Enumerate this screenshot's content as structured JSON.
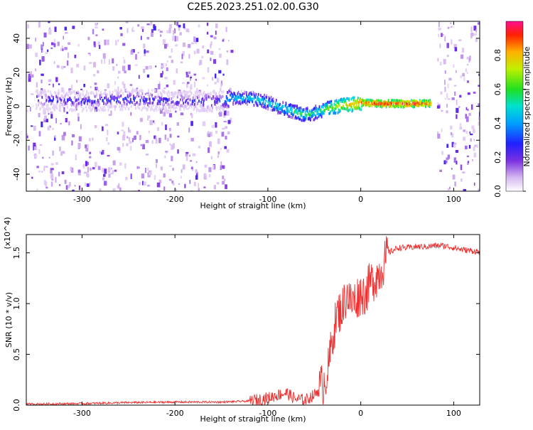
{
  "title": "C2E5.2023.251.02.00.G30",
  "chart_data": [
    {
      "type": "heatmap",
      "xlabel": "Height of straight line (km)",
      "ylabel": "Frequency (Hz)",
      "xlim": [
        -360,
        128
      ],
      "ylim": [
        -50,
        50
      ],
      "xticks": [
        -300,
        -200,
        -100,
        0,
        100
      ],
      "yticks": [
        -40,
        -20,
        0,
        20,
        40
      ],
      "colorbar": {
        "label": "Normalized spectral amplitude",
        "range": [
          0.0,
          1.0
        ],
        "ticks": [
          "0.0",
          "0.2",
          "0.4",
          "0.6",
          "0.8"
        ],
        "colormap": [
          "#ffffff",
          "#e8d0f5",
          "#9b59d8",
          "#5010e0",
          "#1040ff",
          "#00c8ff",
          "#00e0a0",
          "#40e020",
          "#e0e000",
          "#ff8000",
          "#ff0000",
          "#ff1090"
        ]
      },
      "ridge": {
        "x": [
          -350,
          -300,
          -250,
          -200,
          -150,
          -140,
          -120,
          -100,
          -80,
          -60,
          -50,
          -40,
          -30,
          -20,
          -10,
          0,
          20,
          40,
          60,
          75
        ],
        "frequency": [
          4,
          3,
          4,
          3,
          3,
          5,
          5,
          2,
          -2,
          -5,
          -4,
          -2,
          -0.5,
          0.5,
          1,
          2,
          1.5,
          1.5,
          1.5,
          1.5
        ],
        "amplitude": [
          0.25,
          0.25,
          0.3,
          0.25,
          0.3,
          0.45,
          0.5,
          0.5,
          0.55,
          0.6,
          0.55,
          0.65,
          0.7,
          0.8,
          0.85,
          0.9,
          0.95,
          0.95,
          0.95,
          0.9
        ]
      },
      "noise_regions": [
        [
          -360,
          -140
        ],
        [
          82,
          128
        ]
      ]
    },
    {
      "type": "line",
      "xlabel": "Height of straight line (km)",
      "ylabel": "SNR (10 * v/v)",
      "yunit": "(x10^4)",
      "xlim": [
        -360,
        128
      ],
      "ylim": [
        0,
        1.68
      ],
      "xticks": [
        -300,
        -200,
        -100,
        0,
        100
      ],
      "yticks": [
        0.0,
        0.5,
        1.0,
        1.5
      ],
      "series": [
        {
          "color": "#ee3030",
          "x": [
            -360,
            -300,
            -250,
            -200,
            -150,
            -120,
            -100,
            -90,
            -80,
            -70,
            -60,
            -50,
            -40,
            -35,
            -30,
            -25,
            -20,
            -15,
            -10,
            -5,
            0,
            5,
            10,
            15,
            20,
            25,
            30,
            40,
            50,
            60,
            70,
            80,
            90,
            100,
            110,
            120,
            128
          ],
          "values": [
            0.01,
            0.015,
            0.025,
            0.03,
            0.03,
            0.04,
            0.07,
            0.1,
            0.12,
            0.06,
            0.05,
            0.1,
            0.22,
            0.35,
            0.7,
            0.9,
            0.95,
            1.1,
            1.0,
            1.05,
            1.1,
            1.1,
            1.2,
            1.25,
            1.3,
            1.4,
            1.5,
            1.55,
            1.55,
            1.56,
            1.56,
            1.57,
            1.57,
            1.55,
            1.53,
            1.52,
            1.51
          ]
        }
      ]
    }
  ]
}
